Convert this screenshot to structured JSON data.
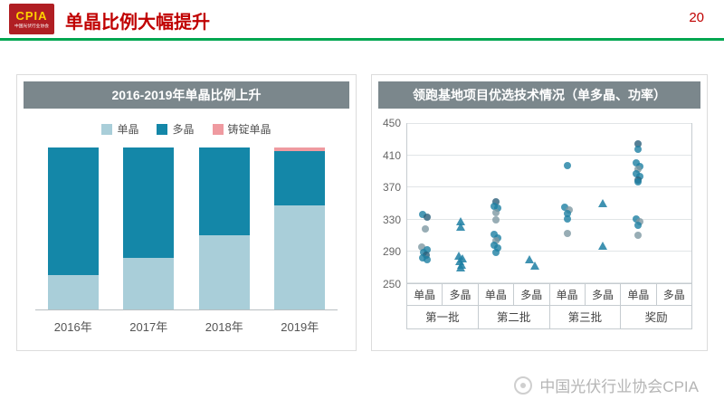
{
  "colors": {
    "accent_red": "#c00000",
    "accent_green": "#00a651",
    "panel_header_bg": "#7b878c",
    "logo_bg": "#b01e23",
    "logo_text": "#ffd200"
  },
  "header": {
    "logo_text": "CPIA",
    "logo_subtext": "中国光伏行业协会",
    "title": "单晶比例大幅提升",
    "page_number": "20"
  },
  "watermark": "中国光伏行业协会CPIA",
  "chart_data": [
    {
      "type": "bar",
      "panel_title": "2016-2019年单晶比例上升",
      "stacked": true,
      "categories": [
        "2016年",
        "2017年",
        "2018年",
        "2019年"
      ],
      "series": [
        {
          "name": "单晶",
          "color": "#a9ced9",
          "values": [
            21,
            32,
            46,
            64
          ]
        },
        {
          "name": "多晶",
          "color": "#1487a8",
          "values": [
            79,
            68,
            54,
            34
          ]
        },
        {
          "name": "铸锭单晶",
          "color": "#ef9aa0",
          "values": [
            0,
            0,
            0,
            2
          ]
        }
      ],
      "ylim": [
        0,
        100
      ],
      "unit": "%",
      "legend_position": "top",
      "grid": false
    },
    {
      "type": "scatter",
      "panel_title": "领跑基地项目优选技术情况（单多晶、功率）",
      "ylim": [
        250,
        450
      ],
      "yticks": [
        250,
        290,
        330,
        370,
        410,
        450
      ],
      "groups": [
        {
          "label": "第一批",
          "columns": [
            "单晶",
            "多晶"
          ]
        },
        {
          "label": "第二批",
          "columns": [
            "单晶",
            "多晶"
          ]
        },
        {
          "label": "第三批",
          "columns": [
            "单晶",
            "多晶"
          ]
        },
        {
          "label": "奖励",
          "columns": [
            "单晶",
            "多晶"
          ]
        }
      ],
      "marker_colors": [
        "#1d7fa3",
        "#7e98a3",
        "#2a5f7a"
      ],
      "points_format": "[x_in_column_units_0to8, value, marker c=circle t=triangle, color_index]",
      "points": [
        [
          0.44,
          336,
          "c",
          0
        ],
        [
          0.56,
          333,
          "c",
          2
        ],
        [
          0.5,
          318,
          "c",
          1
        ],
        [
          0.42,
          296,
          "c",
          1
        ],
        [
          0.56,
          292,
          "c",
          0
        ],
        [
          0.47,
          289,
          "c",
          0
        ],
        [
          0.53,
          285,
          "c",
          2
        ],
        [
          0.44,
          282,
          "c",
          0
        ],
        [
          0.55,
          279,
          "c",
          0
        ],
        [
          1.5,
          327,
          "t",
          0
        ],
        [
          1.5,
          321,
          "t",
          0
        ],
        [
          1.44,
          284,
          "t",
          0
        ],
        [
          1.56,
          281,
          "t",
          0
        ],
        [
          1.48,
          277,
          "t",
          0
        ],
        [
          1.54,
          273,
          "t",
          0
        ],
        [
          1.5,
          269,
          "t",
          0
        ],
        [
          2.5,
          352,
          "c",
          2
        ],
        [
          2.44,
          347,
          "c",
          0
        ],
        [
          2.56,
          344,
          "c",
          0
        ],
        [
          2.5,
          339,
          "c",
          1
        ],
        [
          2.5,
          330,
          "c",
          1
        ],
        [
          2.44,
          311,
          "c",
          0
        ],
        [
          2.56,
          307,
          "c",
          0
        ],
        [
          2.5,
          303,
          "c",
          1
        ],
        [
          2.44,
          298,
          "c",
          0
        ],
        [
          2.56,
          294,
          "c",
          0
        ],
        [
          2.5,
          289,
          "c",
          0
        ],
        [
          3.44,
          279,
          "t",
          0
        ],
        [
          3.58,
          272,
          "t",
          0
        ],
        [
          4.5,
          398,
          "c",
          0
        ],
        [
          4.44,
          346,
          "c",
          0
        ],
        [
          4.56,
          342,
          "c",
          1
        ],
        [
          4.5,
          337,
          "c",
          0
        ],
        [
          4.5,
          331,
          "c",
          0
        ],
        [
          4.5,
          312,
          "c",
          1
        ],
        [
          5.5,
          350,
          "t",
          0
        ],
        [
          5.5,
          297,
          "t",
          0
        ],
        [
          6.5,
          425,
          "c",
          2
        ],
        [
          6.5,
          418,
          "c",
          0
        ],
        [
          6.44,
          401,
          "c",
          0
        ],
        [
          6.56,
          397,
          "c",
          0
        ],
        [
          6.5,
          393,
          "c",
          1
        ],
        [
          6.44,
          388,
          "c",
          0
        ],
        [
          6.56,
          384,
          "c",
          0
        ],
        [
          6.5,
          379,
          "c",
          2
        ],
        [
          6.5,
          377,
          "c",
          0
        ],
        [
          6.44,
          331,
          "c",
          0
        ],
        [
          6.56,
          327,
          "c",
          1
        ],
        [
          6.5,
          323,
          "c",
          0
        ],
        [
          6.5,
          310,
          "c",
          1
        ]
      ],
      "grid": true,
      "legend_position": "none"
    }
  ]
}
